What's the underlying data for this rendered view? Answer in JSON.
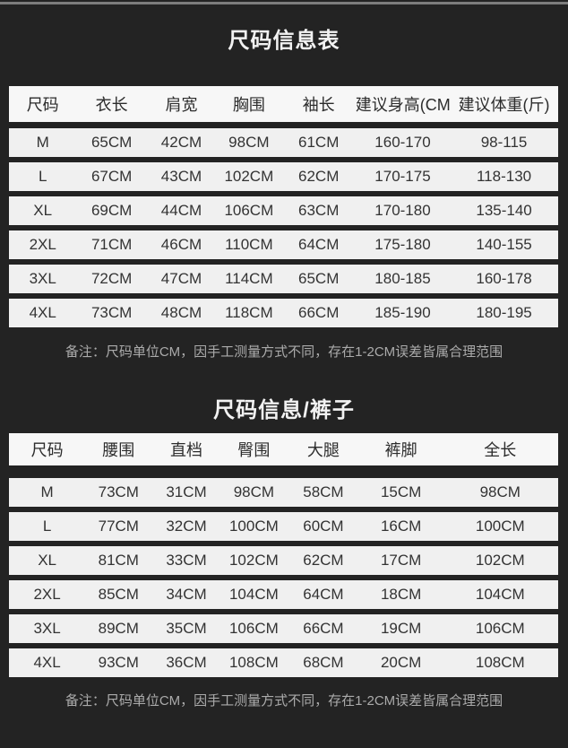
{
  "colors": {
    "background": "#232323",
    "top_strip": "#7d7d7d",
    "row_bg": "#f0f0f0",
    "header_row_bg": "#f7f7f7",
    "title_text": "#f2f2f2",
    "cell_text": "#333333",
    "note_text": "#ababab"
  },
  "shirt_table": {
    "title": "尺码信息表",
    "headers": [
      "尺码",
      "衣长",
      "肩宽",
      "胸围",
      "袖长",
      "建议身高(CM)",
      "建议体重(斤)"
    ],
    "rows": [
      [
        "M",
        "65CM",
        "42CM",
        "98CM",
        "61CM",
        "160-170",
        "98-115"
      ],
      [
        "L",
        "67CM",
        "43CM",
        "102CM",
        "62CM",
        "170-175",
        "118-130"
      ],
      [
        "XL",
        "69CM",
        "44CM",
        "106CM",
        "63CM",
        "170-180",
        "135-140"
      ],
      [
        "2XL",
        "71CM",
        "46CM",
        "110CM",
        "64CM",
        "175-180",
        "140-155"
      ],
      [
        "3XL",
        "72CM",
        "47CM",
        "114CM",
        "65CM",
        "180-185",
        "160-178"
      ],
      [
        "4XL",
        "73CM",
        "48CM",
        "118CM",
        "66CM",
        "185-190",
        "180-195"
      ]
    ],
    "note": "备注：尺码单位CM，因手工测量方式不同，存在1-2CM误差皆属合理范围"
  },
  "pants_table": {
    "title": "尺码信息/裤子",
    "headers": [
      "尺码",
      "腰围",
      "直档",
      "臀围",
      "大腿",
      "裤脚",
      "全长"
    ],
    "rows": [
      [
        "M",
        "73CM",
        "31CM",
        "98CM",
        "58CM",
        "15CM",
        "98CM"
      ],
      [
        "L",
        "77CM",
        "32CM",
        "100CM",
        "60CM",
        "16CM",
        "100CM"
      ],
      [
        "XL",
        "81CM",
        "33CM",
        "102CM",
        "62CM",
        "17CM",
        "102CM"
      ],
      [
        "2XL",
        "85CM",
        "34CM",
        "104CM",
        "64CM",
        "18CM",
        "104CM"
      ],
      [
        "3XL",
        "89CM",
        "35CM",
        "106CM",
        "66CM",
        "19CM",
        "106CM"
      ],
      [
        "4XL",
        "93CM",
        "36CM",
        "108CM",
        "68CM",
        "20CM",
        "108CM"
      ]
    ],
    "note": "备注：尺码单位CM，因手工测量方式不同，存在1-2CM误差皆属合理范围"
  }
}
